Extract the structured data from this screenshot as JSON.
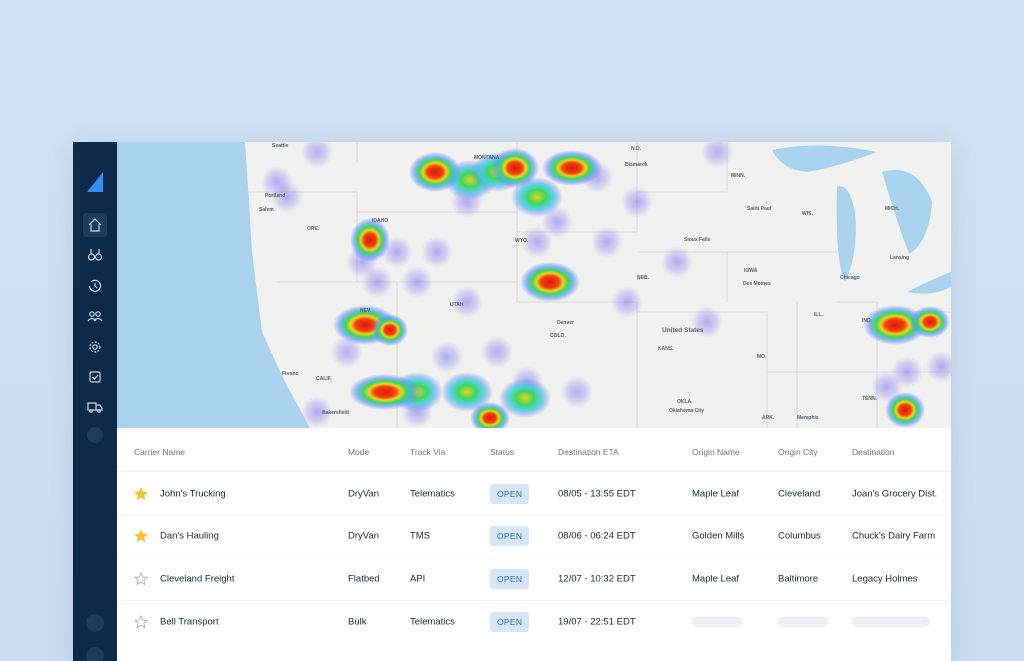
{
  "map": {
    "labels": [
      "Seattle",
      "Portland",
      "Salem",
      "MONTANA",
      "N.D.",
      "Bismarck",
      "MINN.",
      "Saint Paul",
      "WIS.",
      "Chicago",
      "MICH.",
      "Lansing",
      "IOWA",
      "Des Moines",
      "Sioux Falls",
      "NEB.",
      "IDAHO",
      "ORE.",
      "WYO.",
      "UTAH",
      "NEV.",
      "CALIF.",
      "Fresno",
      "Bakersfield",
      "Denver",
      "COLO.",
      "KANS.",
      "United States",
      "MO.",
      "OKLA.",
      "Oklahoma City",
      "ARK.",
      "Memphis",
      "TENN.",
      "IND.",
      "ILL."
    ]
  },
  "table": {
    "headers": [
      "Carrier Name",
      "Mode",
      "Track Via",
      "Status",
      "Destination ETA",
      "Origin Name",
      "Origin City",
      "Destination"
    ],
    "rows": [
      {
        "starred": true,
        "carrier": "John's Trucking",
        "mode": "DryVan",
        "track_via": "Telematics",
        "status": "OPEN",
        "eta": "08/05 - 13:55 EDT",
        "origin_name": "Maple Leaf",
        "origin_city": "Cleveland",
        "destination": "Joan's Grocery Dist."
      },
      {
        "starred": true,
        "carrier": "Dan's Hauling",
        "mode": "DryVan",
        "track_via": "TMS",
        "status": "OPEN",
        "eta": "08/06 - 06:24 EDT",
        "origin_name": "Golden Mills",
        "origin_city": "Columbus",
        "destination": "Chuck's Dairy Farm"
      },
      {
        "starred": false,
        "carrier": "Cleveland Freight",
        "mode": "Flatbed",
        "track_via": "API",
        "status": "OPEN",
        "eta": "12/07 - 10:32 EDT",
        "origin_name": "Maple Leaf",
        "origin_city": "Baltimore",
        "destination": "Legacy Holmes"
      },
      {
        "starred": false,
        "carrier": "Bell Transport",
        "mode": "Bulk",
        "track_via": "Telematics",
        "status": "OPEN",
        "eta": "19/07 - 22:51 EDT"
      }
    ]
  }
}
